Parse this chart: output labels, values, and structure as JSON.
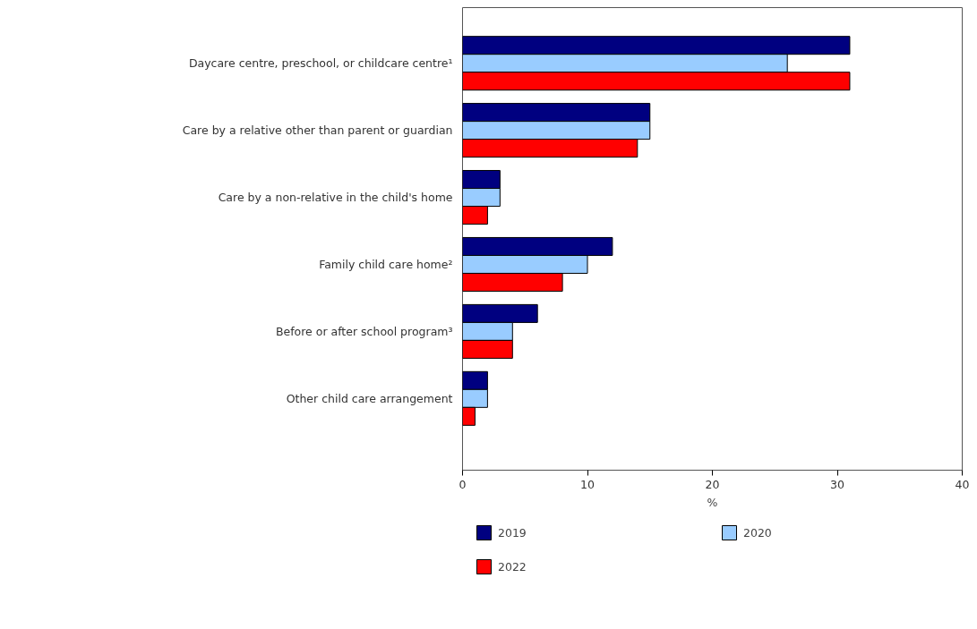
{
  "chart_data": {
    "type": "bar",
    "orientation": "horizontal",
    "xlabel": "%",
    "categories": [
      "Daycare centre, preschool, or childcare centre¹",
      "Care by a relative other than parent or guardian",
      "Care by a non-relative in the child's home",
      "Family child care home²",
      "Before or after school program³",
      "Other child care arrangement"
    ],
    "series": [
      {
        "name": "2019",
        "color": "#000080",
        "values": [
          31,
          15,
          3,
          12,
          6,
          2
        ]
      },
      {
        "name": "2020",
        "color": "#99ccff",
        "values": [
          26,
          15,
          3,
          10,
          4,
          2
        ]
      },
      {
        "name": "2022",
        "color": "#ff0000",
        "values": [
          31,
          14,
          2,
          8,
          4,
          1
        ]
      }
    ],
    "xlim": [
      0,
      40
    ],
    "xticks": [
      0,
      10,
      20,
      30,
      40
    ],
    "grid": false,
    "legend": "bottom left"
  }
}
